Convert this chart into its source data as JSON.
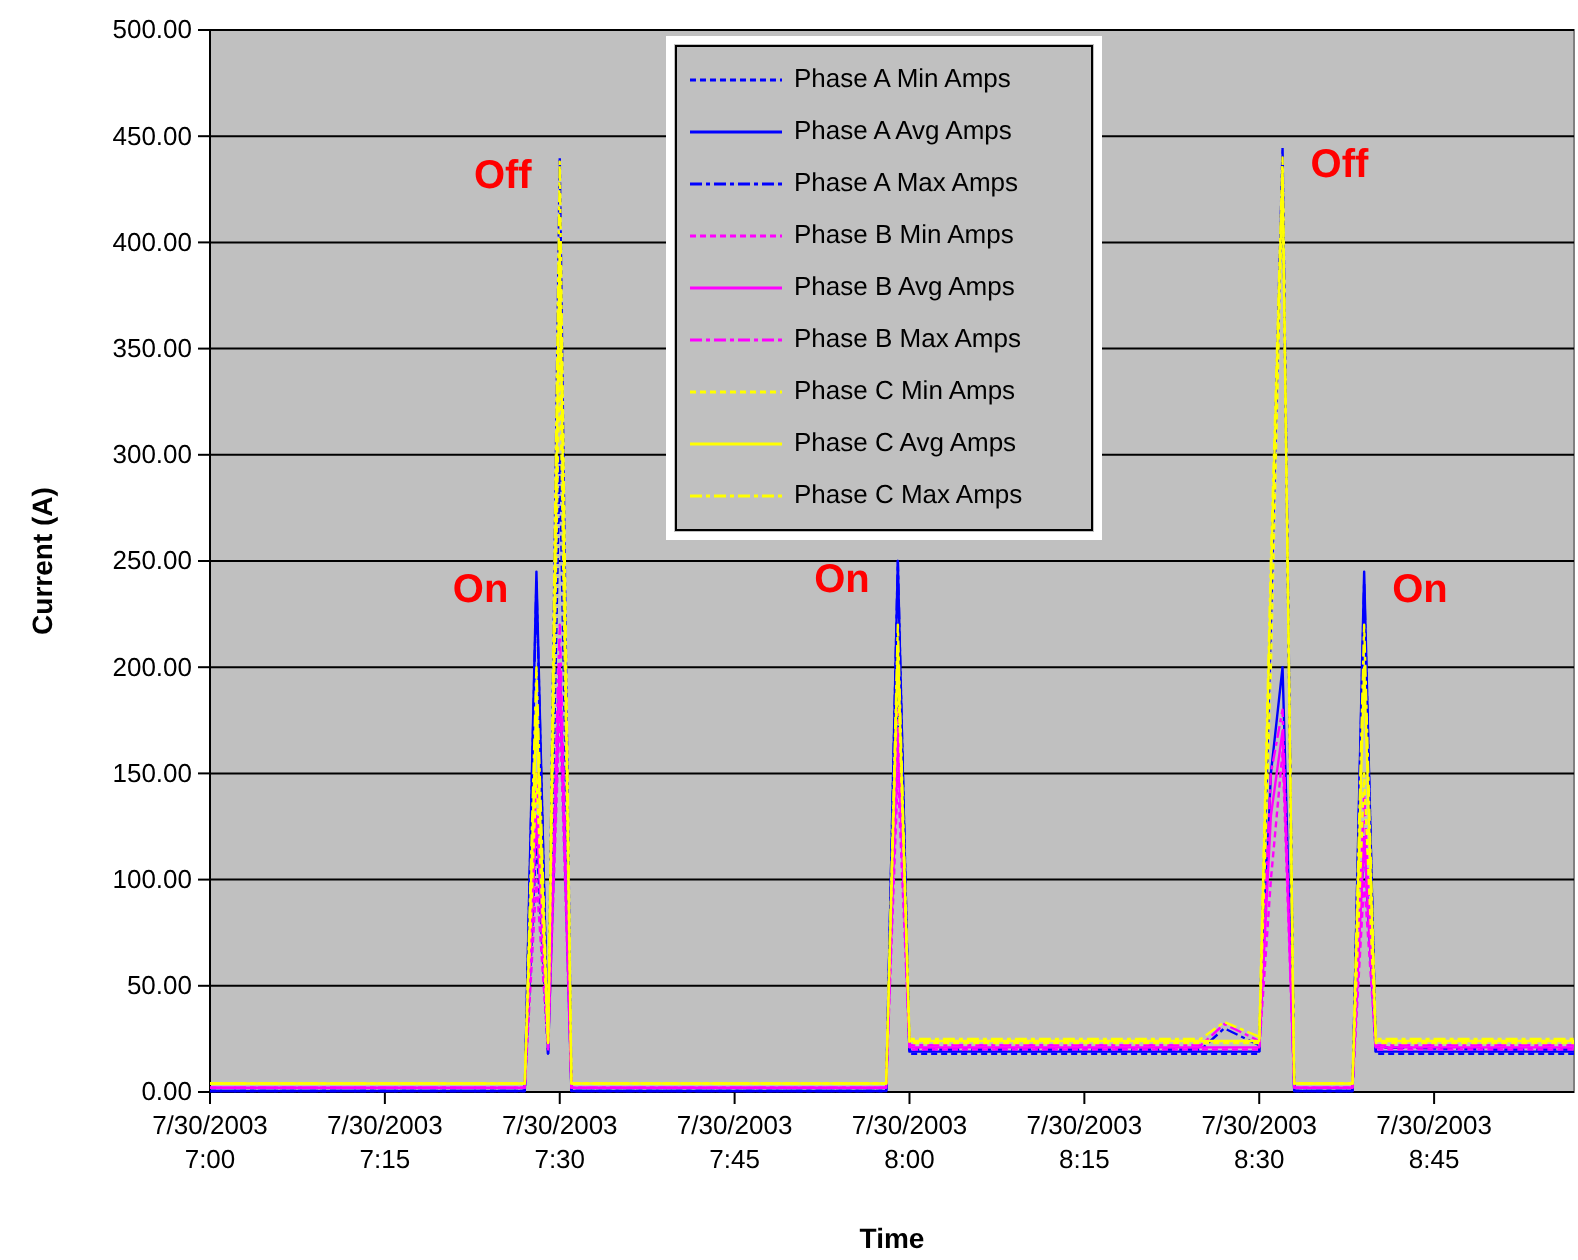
{
  "chart_data": {
    "type": "line",
    "xlabel": "Time",
    "ylabel": "Current (A)",
    "x": [
      "2003-07-30T07:00",
      "2003-07-30T07:12",
      "2003-07-30T07:24",
      "2003-07-30T07:27",
      "2003-07-30T07:28",
      "2003-07-30T07:29",
      "2003-07-30T07:30",
      "2003-07-30T07:31",
      "2003-07-30T07:45",
      "2003-07-30T07:58",
      "2003-07-30T07:59",
      "2003-07-30T08:00",
      "2003-07-30T08:15",
      "2003-07-30T08:25",
      "2003-07-30T08:27",
      "2003-07-30T08:30",
      "2003-07-30T08:31",
      "2003-07-30T08:32",
      "2003-07-30T08:33",
      "2003-07-30T08:38",
      "2003-07-30T08:39",
      "2003-07-30T08:40",
      "2003-07-30T08:50",
      "2003-07-30T08:57"
    ],
    "xlim": [
      "2003-07-30T07:00",
      "2003-07-30T08:57"
    ],
    "xticks": [
      {
        "value": "2003-07-30T07:00",
        "label": "7/30/2003 7:00"
      },
      {
        "value": "2003-07-30T07:15",
        "label": "7/30/2003 7:15"
      },
      {
        "value": "2003-07-30T07:30",
        "label": "7/30/2003 7:30"
      },
      {
        "value": "2003-07-30T07:45",
        "label": "7/30/2003 7:45"
      },
      {
        "value": "2003-07-30T08:00",
        "label": "7/30/2003 8:00"
      },
      {
        "value": "2003-07-30T08:15",
        "label": "7/30/2003 8:15"
      },
      {
        "value": "2003-07-30T08:30",
        "label": "7/30/2003 8:30"
      },
      {
        "value": "2003-07-30T08:45",
        "label": "7/30/2003 8:45"
      }
    ],
    "ylim": [
      0,
      500
    ],
    "yticks": [
      {
        "value": 0,
        "label": "0.00"
      },
      {
        "value": 50,
        "label": "50.00"
      },
      {
        "value": 100,
        "label": "100.00"
      },
      {
        "value": 150,
        "label": "150.00"
      },
      {
        "value": 200,
        "label": "200.00"
      },
      {
        "value": 250,
        "label": "250.00"
      },
      {
        "value": 300,
        "label": "300.00"
      },
      {
        "value": 350,
        "label": "350.00"
      },
      {
        "value": 400,
        "label": "400.00"
      },
      {
        "value": 450,
        "label": "450.00"
      },
      {
        "value": 500,
        "label": "500.00"
      }
    ],
    "grid": "y",
    "legend": "top",
    "marker": "none",
    "series": [
      {
        "name": "Phase A Min Amps",
        "color": "#0000ff",
        "line_style": "dashed",
        "values": [
          0.5,
          0.5,
          0.5,
          0.5,
          120,
          17,
          300,
          0.5,
          0.5,
          0.5,
          190,
          18,
          18,
          18,
          18,
          18,
          220,
          440,
          0.5,
          0.5,
          120,
          18,
          18,
          18
        ]
      },
      {
        "name": "Phase A Avg Amps",
        "color": "#0000ff",
        "line_style": "solid",
        "values": [
          0.5,
          0.5,
          0.5,
          0.5,
          245,
          18,
          200,
          0.5,
          0.5,
          0.5,
          250,
          19,
          19,
          19,
          19,
          19,
          150,
          200,
          0.5,
          0.5,
          245,
          19,
          19,
          19
        ]
      },
      {
        "name": "Phase A Max Amps",
        "color": "#0000ff",
        "line_style": "dashdot",
        "values": [
          0.5,
          0.5,
          0.5,
          0.5,
          240,
          20,
          440,
          0.5,
          0.5,
          0.5,
          250,
          20,
          20,
          20,
          30,
          22,
          230,
          445,
          0.5,
          0.5,
          240,
          21,
          20,
          20
        ]
      },
      {
        "name": "Phase B Min Amps",
        "color": "#ff00ff",
        "line_style": "dashed",
        "values": [
          2,
          2,
          2,
          2,
          100,
          20,
          180,
          2,
          2,
          2,
          150,
          20,
          20,
          20,
          20,
          20,
          100,
          160,
          2,
          2,
          100,
          20,
          20,
          20
        ]
      },
      {
        "name": "Phase B Avg Amps",
        "color": "#ff00ff",
        "line_style": "solid",
        "values": [
          2,
          2,
          2,
          2,
          130,
          21,
          200,
          2,
          2,
          2,
          170,
          21,
          21,
          21,
          21,
          21,
          130,
          170,
          2,
          2,
          120,
          21,
          21,
          21
        ]
      },
      {
        "name": "Phase B Max Amps",
        "color": "#ff00ff",
        "line_style": "dashdot",
        "values": [
          2,
          2,
          2,
          2,
          150,
          22,
          220,
          2,
          2,
          2,
          180,
          22,
          22,
          22,
          32,
          24,
          150,
          180,
          2,
          2,
          140,
          22,
          22,
          22
        ]
      },
      {
        "name": "Phase C Min Amps",
        "color": "#ffff00",
        "line_style": "dashed",
        "values": [
          4,
          4,
          4,
          4,
          150,
          22,
          350,
          4,
          4,
          4,
          200,
          23,
          23,
          23,
          23,
          23,
          200,
          430,
          4,
          4,
          150,
          23,
          23,
          23
        ]
      },
      {
        "name": "Phase C Avg Amps",
        "color": "#ffff00",
        "line_style": "solid",
        "values": [
          4,
          4,
          4,
          4,
          180,
          23,
          400,
          4,
          4,
          4,
          210,
          24,
          24,
          24,
          24,
          24,
          240,
          435,
          4,
          4,
          200,
          24,
          24,
          24
        ]
      },
      {
        "name": "Phase C Max Amps",
        "color": "#ffff00",
        "line_style": "dashdot",
        "values": [
          4,
          4,
          4,
          4,
          200,
          24,
          438,
          4,
          4,
          4,
          220,
          25,
          25,
          25,
          33,
          26,
          250,
          440,
          4,
          4,
          220,
          25,
          25,
          25
        ]
      }
    ],
    "annotations": [
      {
        "text": "Off",
        "x": "2003-07-30T07:30",
        "y": 440
      },
      {
        "text": "On",
        "x": "2003-07-30T07:28",
        "y": 245
      },
      {
        "text": "On",
        "x": "2003-07-30T07:59",
        "y": 250
      },
      {
        "text": "Off",
        "x": "2003-07-30T08:32",
        "y": 445
      },
      {
        "text": "On",
        "x": "2003-07-30T08:39",
        "y": 245
      }
    ]
  }
}
